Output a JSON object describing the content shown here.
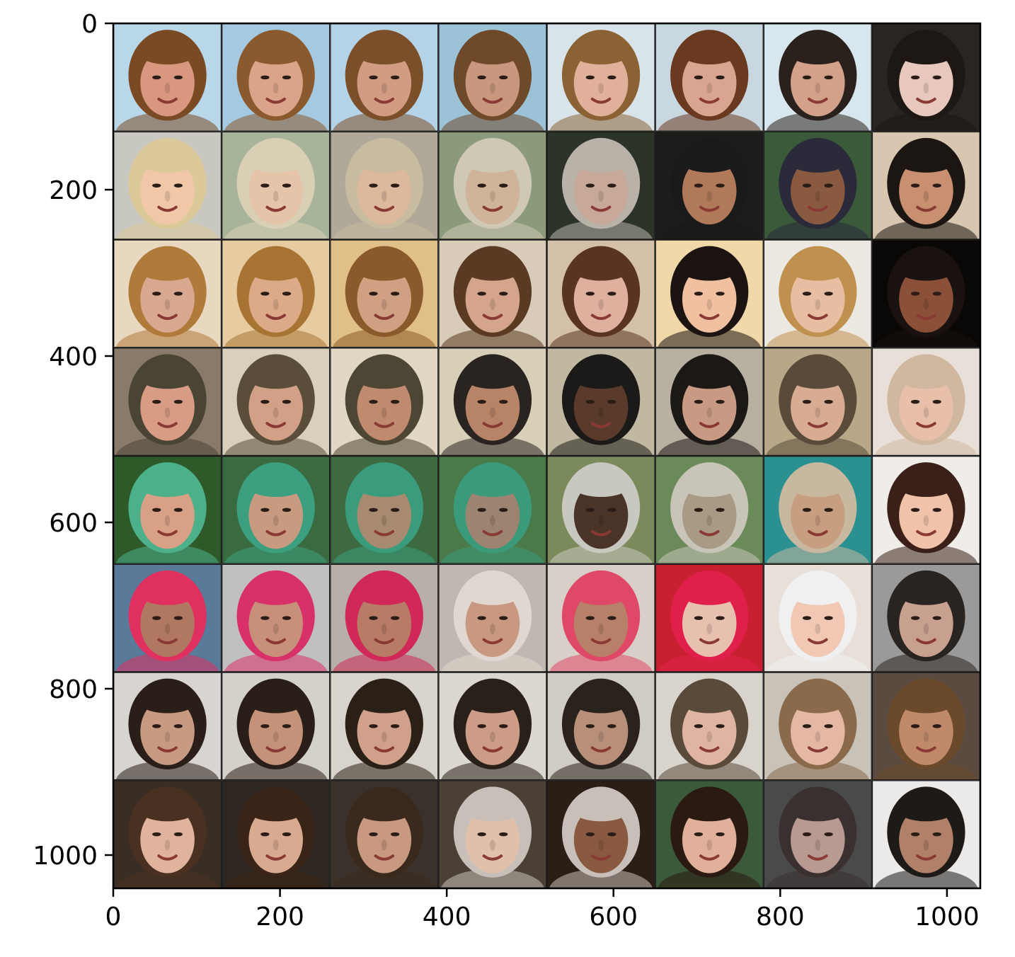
{
  "figure": {
    "type": "image-grid",
    "description_visible": "8x8 grid of face images shown with matplotlib imshow axes",
    "rows": 8,
    "cols": 8,
    "image_extent": {
      "x": [
        0,
        1040
      ],
      "y": [
        0,
        1040
      ]
    }
  },
  "axes": {
    "x_ticks": [
      {
        "value": 0,
        "label": "0"
      },
      {
        "value": 200,
        "label": "200"
      },
      {
        "value": 400,
        "label": "400"
      },
      {
        "value": 600,
        "label": "600"
      },
      {
        "value": 800,
        "label": "800"
      },
      {
        "value": 1000,
        "label": "1000"
      }
    ],
    "y_ticks": [
      {
        "value": 0,
        "label": "0"
      },
      {
        "value": 200,
        "label": "200"
      },
      {
        "value": 400,
        "label": "400"
      },
      {
        "value": 600,
        "label": "600"
      },
      {
        "value": 800,
        "label": "800"
      },
      {
        "value": 1000,
        "label": "1000"
      }
    ]
  },
  "palette": {
    "rows": [
      {
        "bg": [
          "#b8d8ea",
          "#a5c9e0",
          "#b5d3e6",
          "#9cc2d8",
          "#d9e4ea",
          "#c9d8e0",
          "#d8e6ee",
          "#2a2522"
        ],
        "hair": [
          "#7a4a24",
          "#8a5a2e",
          "#7b4f2a",
          "#6f4a2a",
          "#8a6234",
          "#6a3a20",
          "#2b211c",
          "#1e1814"
        ],
        "skin": [
          "#d8977e",
          "#dba48a",
          "#d29c82",
          "#c9977d",
          "#e1b09a",
          "#d9a590",
          "#d3a18a",
          "#e8c8bc"
        ]
      },
      {
        "bg": [
          "#c8c8c0",
          "#a8b49a",
          "#b0a898",
          "#8a9a7a",
          "#2c3328",
          "#1c1c1a",
          "#3a5a3a",
          "#d8c6b0"
        ],
        "hair": [
          "#dcc99a",
          "#d8cfb4",
          "#c8bca0",
          "#cfc8b4",
          "#b8b2a8",
          "#1a1a1a",
          "#2a2a3a",
          "#1c1612"
        ],
        "skin": [
          "#f0c8a8",
          "#e6c4aa",
          "#dcb89c",
          "#d0b49a",
          "#c8a898",
          "#b07a5a",
          "#8a5a40",
          "#c89070"
        ]
      },
      {
        "bg": [
          "#e8d8c0",
          "#e6cca0",
          "#e0c088",
          "#d8ccb8",
          "#d4c0a8",
          "#f0d8a8",
          "#ece8e2",
          "#0a0806"
        ],
        "hair": [
          "#b07a3a",
          "#a87434",
          "#8a5a2a",
          "#5a3a22",
          "#5a3422",
          "#1c1410",
          "#c0904e",
          "#1a1210"
        ],
        "skin": [
          "#d8a890",
          "#dcaa88",
          "#d0a082",
          "#d4a48c",
          "#e0b09e",
          "#f0c0a0",
          "#e8bea2",
          "#8a5038"
        ]
      },
      {
        "bg": [
          "#8a7a6a",
          "#d8d0bc",
          "#e0d8c4",
          "#d8cfb8",
          "#c0b8a0",
          "#b8b0a0",
          "#b8a888",
          "#e8e0d8"
        ],
        "hair": [
          "#4a4434",
          "#5a4e3a",
          "#4e4634",
          "#2a2420",
          "#1c1a18",
          "#1c1816",
          "#5a4a3a",
          "#d0b8a0"
        ],
        "skin": [
          "#d89c84",
          "#d2a086",
          "#c08a6e",
          "#b88468",
          "#5a3a2a",
          "#c89a84",
          "#d8ac92",
          "#e8c0aa"
        ]
      },
      {
        "bg": [
          "#2e5a2a",
          "#3a6a40",
          "#3e6a42",
          "#4a7a4a",
          "#7a8a5a",
          "#6a8a5a",
          "#2a9090",
          "#f0ece8"
        ],
        "hair": [
          "#4cb08a",
          "#3ca080",
          "#3a9c7c",
          "#3a9a7a",
          "#c8c8c0",
          "#c8c4b8",
          "#c8b8a0",
          "#3a2018"
        ],
        "skin": [
          "#d8a084",
          "#c89a80",
          "#a88a70",
          "#9c8470",
          "#4a3428",
          "#a89a84",
          "#c89e80",
          "#f0c2aa"
        ]
      },
      {
        "bg": [
          "#5a7a9a",
          "#c0c0c0",
          "#b8b0a8",
          "#c0b8b0",
          "#d8d0c8",
          "#c82030",
          "#e8e0d8",
          "#9a9a9a"
        ],
        "hair": [
          "#e03060",
          "#d83068",
          "#d02858",
          "#e0d8d0",
          "#e04868",
          "#e0204a",
          "#f0f0f0",
          "#2a2420"
        ],
        "skin": [
          "#b07860",
          "#c8907a",
          "#b87c66",
          "#c89880",
          "#b88068",
          "#e8c0b0",
          "#f0c8b4",
          "#c8a090"
        ]
      },
      {
        "bg": [
          "#d8d4d0",
          "#d4d0ca",
          "#d8d4cc",
          "#dcd8d0",
          "#d0ccc4",
          "#d8d4cc",
          "#c8c2b8",
          "#5a4a40"
        ],
        "hair": [
          "#2a1e18",
          "#2a1e18",
          "#2a2018",
          "#2a201a",
          "#2a221c",
          "#5a4a3a",
          "#8a6a4a",
          "#6a4a2a"
        ],
        "skin": [
          "#c89a82",
          "#c49278",
          "#d0a08a",
          "#cc9c86",
          "#b8907a",
          "#e0b4a2",
          "#e4b8a4",
          "#c08a6a"
        ]
      },
      {
        "bg": [
          "#3a2e24",
          "#2e2620",
          "#3a322a",
          "#4a4036",
          "#2a1e16",
          "#3a5a3a",
          "#4a4a4a",
          "#eceae8"
        ],
        "hair": [
          "#4a3020",
          "#3a2418",
          "#3a2a1e",
          "#c8c0b8",
          "#c8c0b8",
          "#2a1a12",
          "#3a3030",
          "#1e1a18"
        ],
        "skin": [
          "#e0b49c",
          "#d8aa90",
          "#c89880",
          "#e0c0aa",
          "#8a5a40",
          "#e0b09a",
          "#b89a90",
          "#b08068"
        ]
      }
    ]
  }
}
